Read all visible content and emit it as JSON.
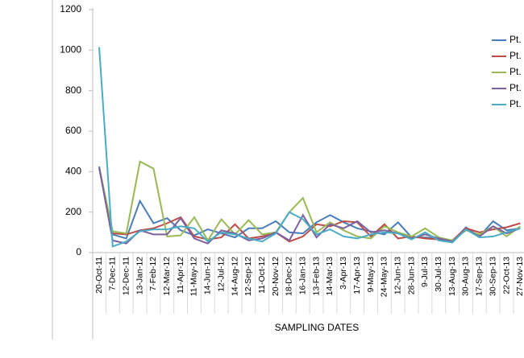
{
  "chart_data": {
    "type": "line",
    "x_label": "SAMPLING DATES",
    "categories": [
      "20-Oct-11",
      "7-Dec-11",
      "12-Dec-11",
      "13-Jan-12",
      "7-Feb-12",
      "12-Mar-12",
      "11-Apr-12",
      "11-May-12",
      "14-Jun-12",
      "12-Jul-12",
      "14-Aug-12",
      "12-Sep-12",
      "11-Oct-12",
      "20-Nov-12",
      "18-Dec-12",
      "16-Jan-13",
      "13-Feb-13",
      "14-Mar-13",
      "3-Apr-13",
      "17-Apr-13",
      "9-May-13",
      "24-May-13",
      "12-Jun-13",
      "28-Jun-13",
      "9-Jul-13",
      "30-Jul-13",
      "13-Aug-13",
      "30-Aug-13",
      "17-Sep-13",
      "30-Sep-13",
      "22-Oct-13",
      "27-Nov-13"
    ],
    "series": [
      {
        "name": "Pt.",
        "color": "#4a7ebb",
        "values": [
          425,
          90,
          70,
          255,
          145,
          170,
          110,
          85,
          115,
          95,
          75,
          120,
          120,
          155,
          100,
          95,
          150,
          185,
          150,
          120,
          105,
          90,
          150,
          75,
          75,
          70,
          55,
          125,
          80,
          155,
          110,
          120
        ]
      },
      {
        "name": "Pt.",
        "color": "#be4b48",
        "values": [
          420,
          95,
          90,
          110,
          120,
          145,
          175,
          80,
          65,
          75,
          140,
          70,
          80,
          100,
          55,
          80,
          140,
          130,
          155,
          150,
          80,
          140,
          70,
          80,
          70,
          65,
          60,
          120,
          100,
          115,
          125,
          145
        ]
      },
      {
        "name": "Pt.",
        "color": "#98b954",
        "values": [
          420,
          105,
          95,
          450,
          415,
          80,
          85,
          175,
          60,
          165,
          90,
          160,
          90,
          100,
          200,
          270,
          100,
          150,
          110,
          80,
          70,
          130,
          100,
          80,
          120,
          75,
          60,
          110,
          90,
          130,
          80,
          130
        ]
      },
      {
        "name": "Pt.",
        "color": "#7d60a0",
        "values": [
          420,
          60,
          45,
          110,
          90,
          90,
          170,
          70,
          45,
          110,
          95,
          60,
          70,
          100,
          60,
          185,
          75,
          140,
          120,
          155,
          100,
          110,
          95,
          70,
          90,
          70,
          55,
          115,
          80,
          130,
          95,
          120
        ]
      },
      {
        "name": "Pt.",
        "color": "#4bacc6",
        "values": [
          1015,
          30,
          55,
          105,
          115,
          115,
          130,
          120,
          55,
          100,
          90,
          70,
          55,
          95,
          200,
          165,
          90,
          115,
          80,
          70,
          90,
          100,
          95,
          65,
          100,
          60,
          50,
          115,
          75,
          80,
          100,
          120
        ]
      }
    ],
    "ylim": [
      0,
      1200
    ],
    "yticks": [
      0,
      200,
      400,
      600,
      800,
      1000,
      1200
    ],
    "grid": false,
    "legend": "right"
  }
}
